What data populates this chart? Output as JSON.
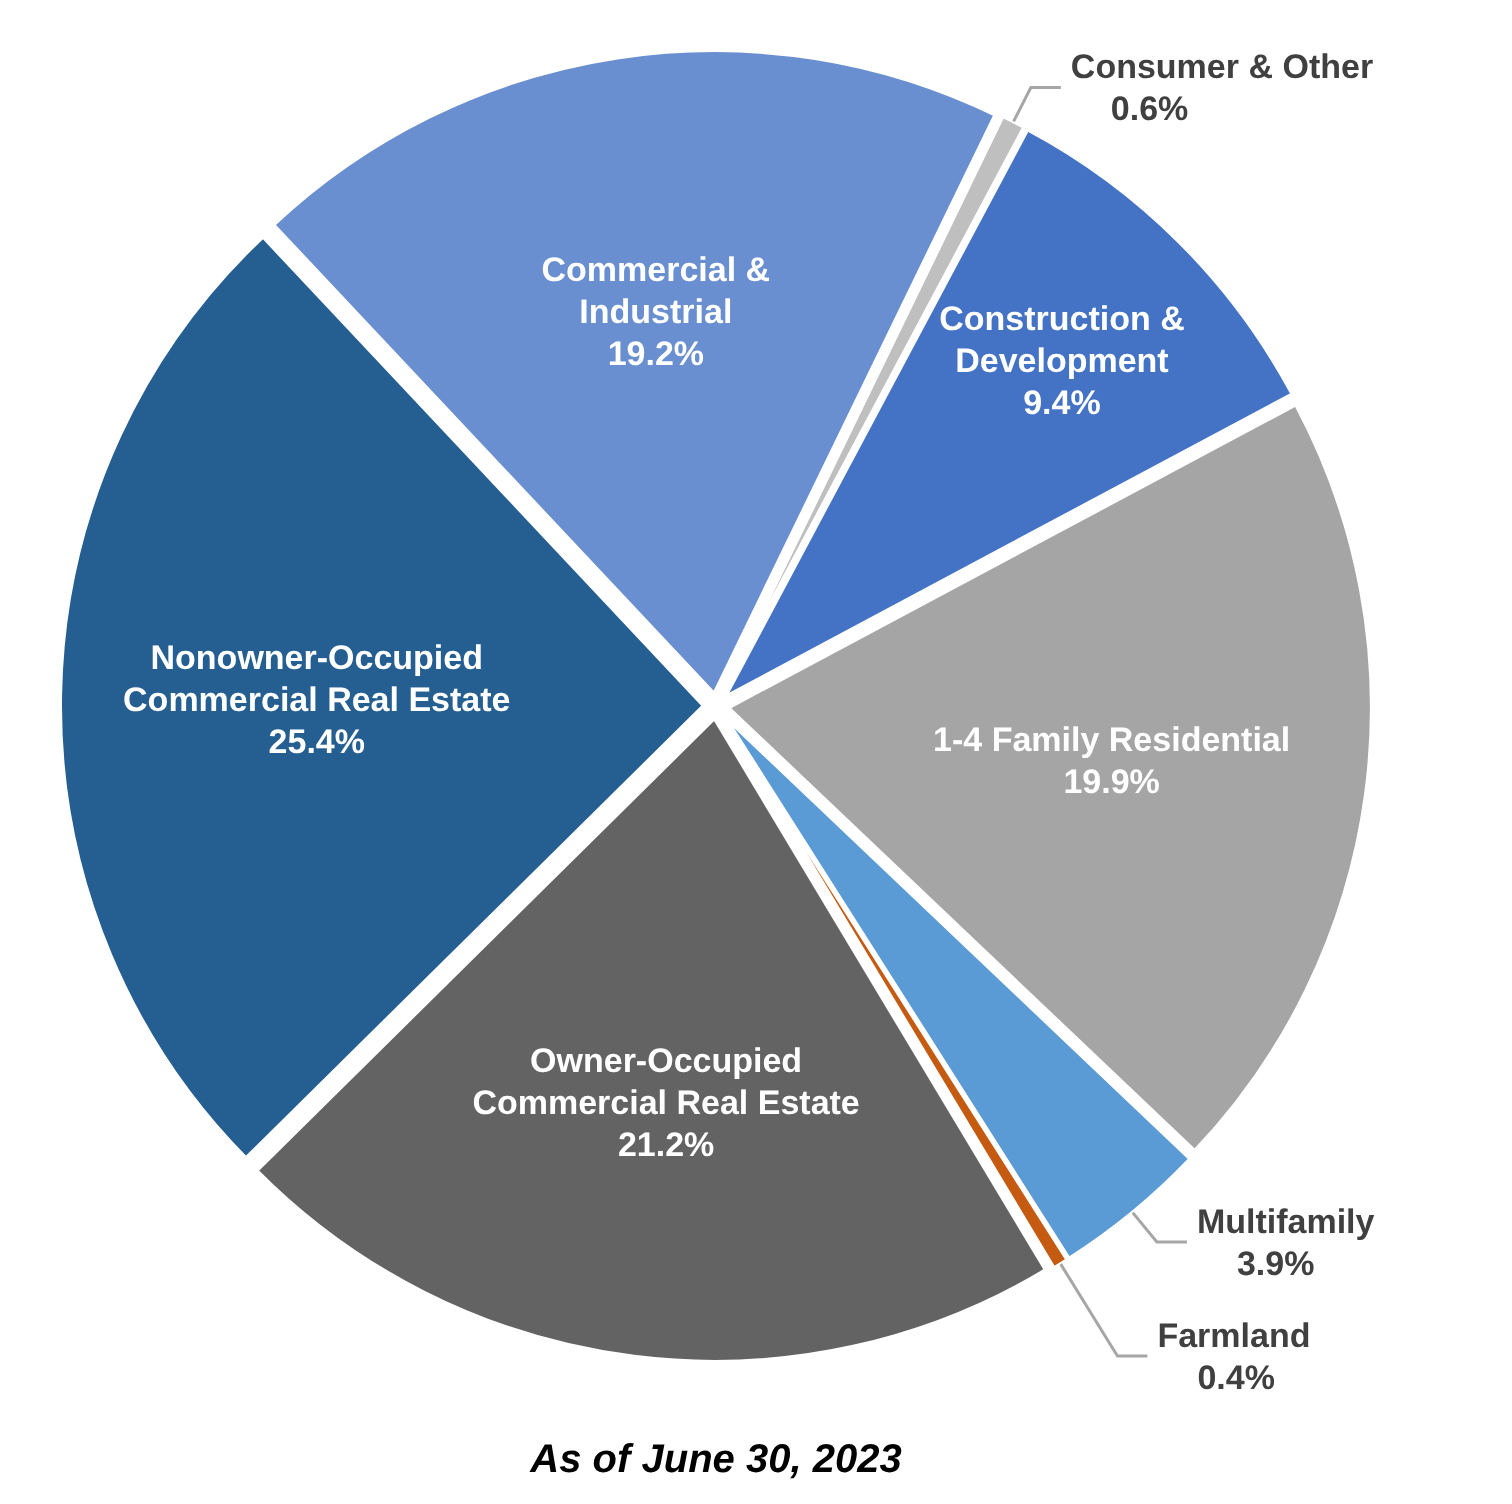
{
  "chart_data": {
    "type": "pie",
    "categories": [
      "Consumer & Other",
      "Construction & Development",
      "1-4 Family Residential",
      "Multifamily",
      "Farmland",
      "Owner-Occupied Commercial Real Estate",
      "Nonowner-Occupied Commercial Real Estate",
      "Commercial & Industrial"
    ],
    "values": [
      0.6,
      9.4,
      19.9,
      3.9,
      0.4,
      21.2,
      25.4,
      19.2
    ],
    "value_labels": [
      "0.6%",
      "9.4%",
      "19.9%",
      "3.9%",
      "0.4%",
      "21.2%",
      "25.4%",
      "19.2%"
    ],
    "colors": [
      "#bfbfbf",
      "#4472c4",
      "#a5a5a5",
      "#5b9bd5",
      "#c55a11",
      "#636363",
      "#255e91",
      "#6a8fd0"
    ],
    "annotations": [
      "As of June 30, 2023"
    ]
  }
}
